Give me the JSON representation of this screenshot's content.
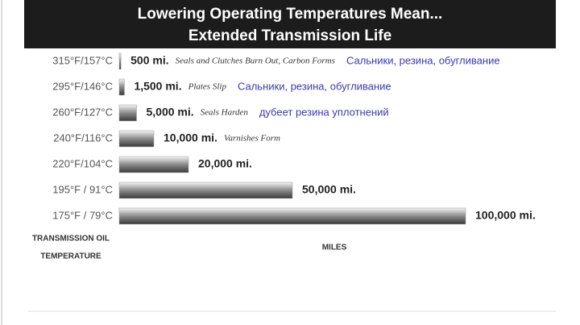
{
  "chart_data": {
    "type": "bar",
    "orientation": "horizontal",
    "title": [
      "Lowering Operating Temperatures Mean...",
      "Extended Transmission Life"
    ],
    "categories": [
      "315°F/157°C",
      "295°F/146°C",
      "260°F/127°C",
      "240°F/116°C",
      "220°F/104°C",
      "195°F / 91°C",
      "175°F / 79°C"
    ],
    "values": [
      500,
      1500,
      5000,
      10000,
      20000,
      50000,
      100000
    ],
    "value_labels": [
      "500 mi.",
      "1,500 mi.",
      "5,000 mi.",
      "10,000 mi.",
      "20,000 mi.",
      "50,000 mi.",
      "100,000 mi."
    ],
    "annotations": [
      "Seals and Clutches Burn Out, Carbon Forms",
      "Plates Slip",
      "Seals Harden",
      "Varnishes Form",
      null,
      null,
      null
    ],
    "translations": [
      "Сальники, резина, обугливание",
      "Сальники, резина, обугливание",
      "дубеет резина уплотнений",
      null,
      null,
      null,
      null
    ],
    "y_label": [
      "TRANSMISSION OIL",
      "TEMPERATURE"
    ],
    "x_label": "MILES",
    "color": "#9a9a9a"
  }
}
